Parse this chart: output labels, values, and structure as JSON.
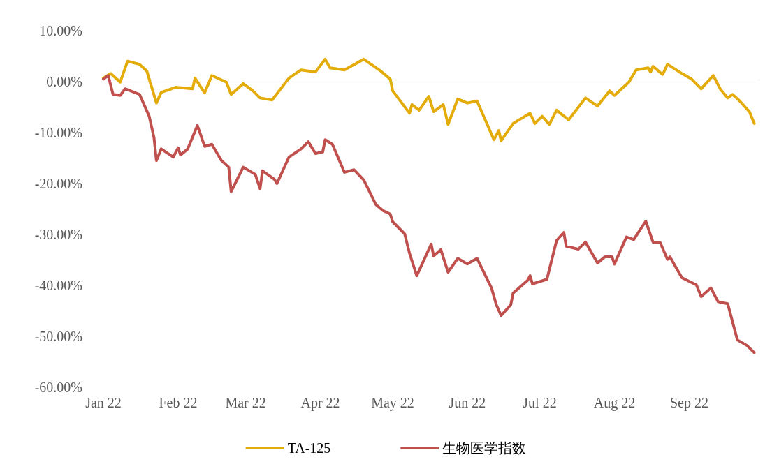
{
  "chart_data": {
    "type": "line",
    "xlim": [
      "2022-01-01",
      "2022-09-29"
    ],
    "xticks": [
      {
        "value": "2022-01-01",
        "label": "Jan 22"
      },
      {
        "value": "2022-02-01",
        "label": "Feb 22"
      },
      {
        "value": "2022-03-01",
        "label": "Mar 22"
      },
      {
        "value": "2022-04-01",
        "label": "Apr 22"
      },
      {
        "value": "2022-05-01",
        "label": "May 22"
      },
      {
        "value": "2022-06-01",
        "label": "Jun 22"
      },
      {
        "value": "2022-07-01",
        "label": "Jul 22"
      },
      {
        "value": "2022-08-01",
        "label": "Aug 22"
      },
      {
        "value": "2022-09-01",
        "label": "Sep 22"
      }
    ],
    "ylim": [
      -60,
      10
    ],
    "yticks": [
      {
        "value": 10,
        "label": "10.00%"
      },
      {
        "value": 0,
        "label": "0.00%"
      },
      {
        "value": -10,
        "label": "-10.00%"
      },
      {
        "value": -20,
        "label": "-20.00%"
      },
      {
        "value": -30,
        "label": "-30.00%"
      },
      {
        "value": -40,
        "label": "-40.00%"
      },
      {
        "value": -50,
        "label": "-50.00%"
      },
      {
        "value": -60,
        "label": "-60.00%"
      }
    ],
    "grid": false,
    "legend": "bottom",
    "marker": "none",
    "line_style": "solid",
    "ref_lines": [
      {
        "axis": "y",
        "value": 0,
        "color": "#d9d9d9"
      }
    ],
    "series": [
      {
        "name": "TA-125",
        "color": "#e3ac0a",
        "x": [
          "2022-01-01",
          "2022-01-04",
          "2022-01-08",
          "2022-01-11",
          "2022-01-16",
          "2022-01-19",
          "2022-01-23",
          "2022-01-25",
          "2022-01-31",
          "2022-02-07",
          "2022-02-08",
          "2022-02-12",
          "2022-02-15",
          "2022-02-21",
          "2022-02-23",
          "2022-02-28",
          "2022-03-04",
          "2022-03-07",
          "2022-03-12",
          "2022-03-19",
          "2022-03-24",
          "2022-03-30",
          "2022-04-03",
          "2022-04-05",
          "2022-04-11",
          "2022-04-19",
          "2022-04-26",
          "2022-04-30",
          "2022-05-01",
          "2022-05-08",
          "2022-05-09",
          "2022-05-12",
          "2022-05-16",
          "2022-05-18",
          "2022-05-22",
          "2022-05-24",
          "2022-05-28",
          "2022-06-01",
          "2022-06-05",
          "2022-06-12",
          "2022-06-14",
          "2022-06-15",
          "2022-06-20",
          "2022-06-27",
          "2022-06-29",
          "2022-07-02",
          "2022-07-05",
          "2022-07-08",
          "2022-07-13",
          "2022-07-20",
          "2022-07-25",
          "2022-07-30",
          "2022-08-01",
          "2022-08-07",
          "2022-08-10",
          "2022-08-15",
          "2022-08-16",
          "2022-08-17",
          "2022-08-21",
          "2022-08-23",
          "2022-08-29",
          "2022-09-02",
          "2022-09-06",
          "2022-09-11",
          "2022-09-14",
          "2022-09-17",
          "2022-09-19",
          "2022-09-22",
          "2022-09-26",
          "2022-09-28"
        ],
        "values": [
          0.7,
          1.6,
          -0.1,
          4.0,
          3.4,
          2.1,
          -4.2,
          -2.1,
          -1.1,
          -1.4,
          0.7,
          -2.2,
          1.2,
          -0.1,
          -2.5,
          -0.4,
          -1.8,
          -3.2,
          -3.6,
          0.7,
          2.3,
          1.9,
          4.4,
          2.7,
          2.3,
          4.4,
          2.1,
          0.5,
          -1.8,
          -6.2,
          -4.5,
          -5.6,
          -2.9,
          -5.9,
          -4.5,
          -8.4,
          -3.4,
          -4.2,
          -3.8,
          -11.4,
          -9.6,
          -11.6,
          -8.2,
          -6.2,
          -8.2,
          -6.8,
          -8.4,
          -5.6,
          -7.5,
          -3.2,
          -4.8,
          -1.8,
          -2.7,
          -0.1,
          2.3,
          2.7,
          1.9,
          3.0,
          1.4,
          3.4,
          1.6,
          0.5,
          -1.4,
          1.2,
          -1.5,
          -3.2,
          -2.5,
          -3.8,
          -5.9,
          -8.2
        ]
      },
      {
        "name": "生物医学指数",
        "color": "#c0504d",
        "x": [
          "2022-01-01",
          "2022-01-03",
          "2022-01-05",
          "2022-01-08",
          "2022-01-10",
          "2022-01-16",
          "2022-01-20",
          "2022-01-22",
          "2022-01-23",
          "2022-01-25",
          "2022-01-30",
          "2022-02-01",
          "2022-02-02",
          "2022-02-05",
          "2022-02-09",
          "2022-02-12",
          "2022-02-15",
          "2022-02-19",
          "2022-02-22",
          "2022-02-23",
          "2022-02-28",
          "2022-03-05",
          "2022-03-07",
          "2022-03-08",
          "2022-03-13",
          "2022-03-14",
          "2022-03-19",
          "2022-03-24",
          "2022-03-27",
          "2022-03-30",
          "2022-04-02",
          "2022-04-03",
          "2022-04-06",
          "2022-04-11",
          "2022-04-15",
          "2022-04-19",
          "2022-04-24",
          "2022-04-27",
          "2022-04-30",
          "2022-05-01",
          "2022-05-06",
          "2022-05-08",
          "2022-05-11",
          "2022-05-17",
          "2022-05-18",
          "2022-05-21",
          "2022-05-24",
          "2022-05-28",
          "2022-06-01",
          "2022-06-05",
          "2022-06-11",
          "2022-06-13",
          "2022-06-15",
          "2022-06-19",
          "2022-06-20",
          "2022-06-26",
          "2022-06-27",
          "2022-06-28",
          "2022-07-04",
          "2022-07-08",
          "2022-07-11",
          "2022-07-12",
          "2022-07-17",
          "2022-07-20",
          "2022-07-25",
          "2022-07-28",
          "2022-07-31",
          "2022-08-01",
          "2022-08-06",
          "2022-08-09",
          "2022-08-14",
          "2022-08-17",
          "2022-08-20",
          "2022-08-23",
          "2022-08-24",
          "2022-08-29",
          "2022-09-04",
          "2022-09-06",
          "2022-09-10",
          "2022-09-13",
          "2022-09-17",
          "2022-09-21",
          "2022-09-25",
          "2022-09-28"
        ],
        "values": [
          0.5,
          1.2,
          -2.5,
          -2.7,
          -1.4,
          -2.5,
          -6.8,
          -11.0,
          -15.5,
          -13.2,
          -14.8,
          -13.0,
          -14.4,
          -13.2,
          -8.6,
          -12.7,
          -12.3,
          -15.5,
          -16.8,
          -21.6,
          -16.8,
          -18.2,
          -21.0,
          -17.5,
          -19.2,
          -20.0,
          -14.8,
          -13.2,
          -11.8,
          -14.1,
          -13.8,
          -11.4,
          -12.3,
          -17.8,
          -17.3,
          -19.3,
          -24.1,
          -25.3,
          -26.0,
          -27.5,
          -29.9,
          -33.7,
          -38.1,
          -31.9,
          -34.2,
          -33.0,
          -37.4,
          -34.7,
          -35.8,
          -34.7,
          -40.5,
          -43.8,
          -45.9,
          -43.8,
          -41.5,
          -39.0,
          -38.1,
          -39.7,
          -38.8,
          -31.2,
          -29.6,
          -32.3,
          -32.9,
          -31.5,
          -35.6,
          -34.4,
          -34.4,
          -35.8,
          -30.5,
          -31.0,
          -27.4,
          -31.5,
          -31.6,
          -34.9,
          -34.4,
          -38.5,
          -39.9,
          -42.2,
          -40.5,
          -43.2,
          -43.6,
          -50.7,
          -51.8,
          -53.2
        ]
      }
    ]
  }
}
